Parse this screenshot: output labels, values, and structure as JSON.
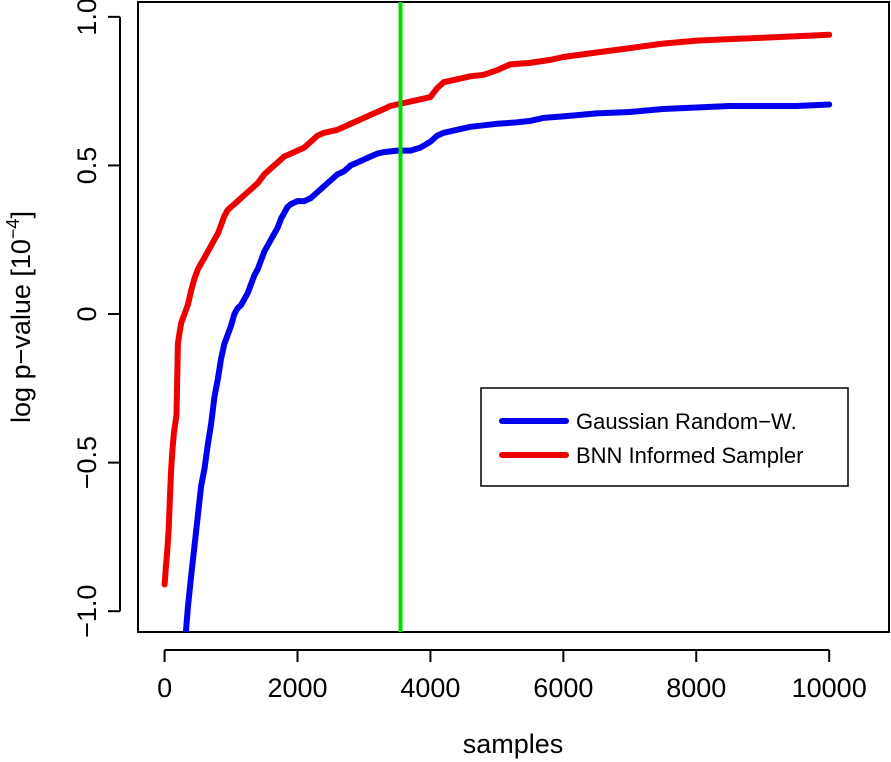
{
  "chart_data": {
    "type": "line",
    "title": "",
    "xlabel": "samples",
    "ylabel_main": "log p−value [10",
    "ylabel_sup": "−4",
    "ylabel_end": "]",
    "xlim": [
      -400,
      10900
    ],
    "ylim": [
      -1.07,
      1.05
    ],
    "x_ticks": [
      0,
      2000,
      4000,
      6000,
      8000,
      10000
    ],
    "x_tick_labels": [
      "0",
      "2000",
      "4000",
      "6000",
      "8000",
      "10000"
    ],
    "y_ticks": [
      -1.0,
      -0.5,
      0,
      0.5,
      1.0
    ],
    "y_tick_labels": [
      "−1.0",
      "−0.5",
      "0",
      "0.5",
      "1.0"
    ],
    "vline": {
      "x": 3550,
      "color": "#00dd00"
    },
    "legend_position": "lower-right",
    "series": [
      {
        "name": "Gaussian Random−W.",
        "color": "#0000ee",
        "points": [
          [
            320,
            -1.07
          ],
          [
            350,
            -0.99
          ],
          [
            400,
            -0.88
          ],
          [
            450,
            -0.78
          ],
          [
            500,
            -0.68
          ],
          [
            550,
            -0.58
          ],
          [
            600,
            -0.52
          ],
          [
            650,
            -0.44
          ],
          [
            700,
            -0.37
          ],
          [
            750,
            -0.28
          ],
          [
            800,
            -0.22
          ],
          [
            850,
            -0.15
          ],
          [
            900,
            -0.1
          ],
          [
            950,
            -0.07
          ],
          [
            1000,
            -0.04
          ],
          [
            1050,
            0.0
          ],
          [
            1100,
            0.02
          ],
          [
            1150,
            0.03
          ],
          [
            1200,
            0.05
          ],
          [
            1250,
            0.07
          ],
          [
            1300,
            0.1
          ],
          [
            1350,
            0.13
          ],
          [
            1400,
            0.15
          ],
          [
            1450,
            0.18
          ],
          [
            1500,
            0.21
          ],
          [
            1550,
            0.23
          ],
          [
            1600,
            0.25
          ],
          [
            1650,
            0.27
          ],
          [
            1700,
            0.29
          ],
          [
            1750,
            0.32
          ],
          [
            1800,
            0.34
          ],
          [
            1850,
            0.36
          ],
          [
            1900,
            0.37
          ],
          [
            2000,
            0.38
          ],
          [
            2100,
            0.38
          ],
          [
            2200,
            0.39
          ],
          [
            2300,
            0.41
          ],
          [
            2400,
            0.43
          ],
          [
            2500,
            0.45
          ],
          [
            2600,
            0.47
          ],
          [
            2700,
            0.48
          ],
          [
            2800,
            0.5
          ],
          [
            2900,
            0.51
          ],
          [
            3000,
            0.52
          ],
          [
            3100,
            0.53
          ],
          [
            3200,
            0.54
          ],
          [
            3300,
            0.545
          ],
          [
            3500,
            0.55
          ],
          [
            3700,
            0.55
          ],
          [
            3850,
            0.56
          ],
          [
            4000,
            0.58
          ],
          [
            4100,
            0.6
          ],
          [
            4200,
            0.61
          ],
          [
            4400,
            0.62
          ],
          [
            4600,
            0.63
          ],
          [
            4800,
            0.635
          ],
          [
            5000,
            0.64
          ],
          [
            5300,
            0.645
          ],
          [
            5500,
            0.65
          ],
          [
            5700,
            0.66
          ],
          [
            6000,
            0.665
          ],
          [
            6500,
            0.675
          ],
          [
            7000,
            0.68
          ],
          [
            7500,
            0.69
          ],
          [
            8000,
            0.695
          ],
          [
            8500,
            0.7
          ],
          [
            9000,
            0.7
          ],
          [
            9500,
            0.7
          ],
          [
            10000,
            0.705
          ]
        ]
      },
      {
        "name": "BNN Informed Sampler",
        "color": "#ee0000",
        "points": [
          [
            0,
            -0.91
          ],
          [
            20,
            -0.85
          ],
          [
            40,
            -0.8
          ],
          [
            60,
            -0.73
          ],
          [
            80,
            -0.62
          ],
          [
            100,
            -0.52
          ],
          [
            120,
            -0.45
          ],
          [
            140,
            -0.4
          ],
          [
            160,
            -0.37
          ],
          [
            180,
            -0.34
          ],
          [
            190,
            -0.22
          ],
          [
            200,
            -0.1
          ],
          [
            220,
            -0.07
          ],
          [
            250,
            -0.03
          ],
          [
            300,
            0.0
          ],
          [
            350,
            0.03
          ],
          [
            400,
            0.08
          ],
          [
            450,
            0.12
          ],
          [
            500,
            0.15
          ],
          [
            550,
            0.17
          ],
          [
            600,
            0.19
          ],
          [
            650,
            0.21
          ],
          [
            700,
            0.23
          ],
          [
            750,
            0.25
          ],
          [
            800,
            0.27
          ],
          [
            850,
            0.3
          ],
          [
            900,
            0.33
          ],
          [
            950,
            0.35
          ],
          [
            1000,
            0.36
          ],
          [
            1050,
            0.37
          ],
          [
            1100,
            0.38
          ],
          [
            1200,
            0.4
          ],
          [
            1300,
            0.42
          ],
          [
            1400,
            0.44
          ],
          [
            1500,
            0.47
          ],
          [
            1600,
            0.49
          ],
          [
            1700,
            0.51
          ],
          [
            1800,
            0.53
          ],
          [
            1900,
            0.54
          ],
          [
            2000,
            0.55
          ],
          [
            2100,
            0.56
          ],
          [
            2200,
            0.58
          ],
          [
            2300,
            0.6
          ],
          [
            2400,
            0.61
          ],
          [
            2500,
            0.615
          ],
          [
            2600,
            0.62
          ],
          [
            2700,
            0.63
          ],
          [
            2800,
            0.64
          ],
          [
            2900,
            0.65
          ],
          [
            3000,
            0.66
          ],
          [
            3100,
            0.67
          ],
          [
            3200,
            0.68
          ],
          [
            3300,
            0.69
          ],
          [
            3400,
            0.7
          ],
          [
            3500,
            0.705
          ],
          [
            3600,
            0.71
          ],
          [
            3800,
            0.72
          ],
          [
            4000,
            0.73
          ],
          [
            4100,
            0.76
          ],
          [
            4200,
            0.78
          ],
          [
            4400,
            0.79
          ],
          [
            4600,
            0.8
          ],
          [
            4800,
            0.805
          ],
          [
            5000,
            0.82
          ],
          [
            5200,
            0.84
          ],
          [
            5500,
            0.845
          ],
          [
            5800,
            0.855
          ],
          [
            6000,
            0.865
          ],
          [
            6500,
            0.88
          ],
          [
            7000,
            0.895
          ],
          [
            7500,
            0.91
          ],
          [
            8000,
            0.92
          ],
          [
            8500,
            0.925
          ],
          [
            9000,
            0.93
          ],
          [
            9500,
            0.935
          ],
          [
            10000,
            0.94
          ]
        ]
      }
    ]
  }
}
